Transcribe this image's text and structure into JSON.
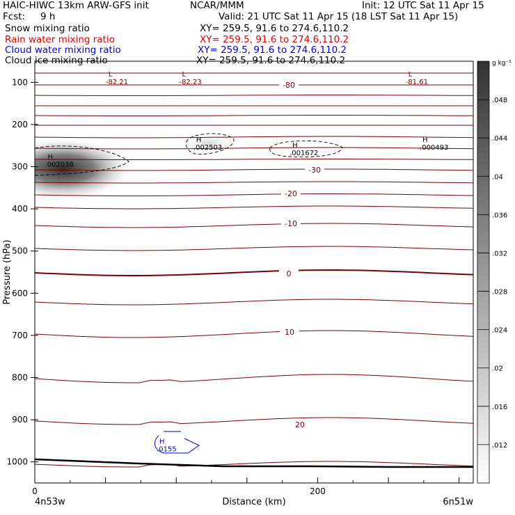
{
  "header": {
    "left_title": "HAIC-HIWC 13km ARW-GFS init",
    "center_title": "NCAR/MMM",
    "init": "Init: 12 UTC Sat 11 Apr 15",
    "fcst_label": "Fcst:",
    "fcst_value": "9 h",
    "valid": "Valid: 21 UTC Sat 11 Apr 15 (18 LST Sat 11 Apr 15)",
    "fields": [
      {
        "name": "Snow mixing ratio",
        "xy": "XY= 259.5, 91.6 to 274.6,110.2",
        "color": "#000000"
      },
      {
        "name": "Rain water mixing ratio",
        "xy": "XY= 259.5, 91.6 to 274.6,110.2",
        "color": "#e00000"
      },
      {
        "name": "Cloud water mixing ratio",
        "xy": "XY= 259.5, 91.6 to 274.6,110.2",
        "color": "#0000d0"
      },
      {
        "name": "Cloud ice mixing ratio",
        "xy": "XY= 259.5, 91.6 to 274.6,110.2",
        "color": "#000000"
      }
    ]
  },
  "chart_data": {
    "type": "heatmap",
    "xlabel": "Distance (km)",
    "ylabel": "Pressure (hPa)",
    "x_range_km": [
      0,
      310
    ],
    "y_range_hPa": [
      1050,
      50
    ],
    "x_ticks": [
      0,
      200
    ],
    "x_end_labels": [
      "4n53w",
      "6n51w"
    ],
    "y_ticks": [
      100,
      200,
      300,
      400,
      500,
      600,
      700,
      800,
      900,
      1000
    ],
    "colorbar": {
      "unit": "g kg⁻¹",
      "ticks": [
        ".012",
        ".016",
        ".02",
        ".024",
        ".028",
        ".032",
        ".036",
        ".04",
        ".044",
        ".048"
      ],
      "range": [
        0.008,
        0.052
      ]
    },
    "temperature_contour_labels": [
      "-80",
      "-30",
      "-20",
      "-10",
      "0",
      "10",
      "20"
    ],
    "temperature_extremes": [
      {
        "kind": "L",
        "value": "-82.21",
        "x_km": 58,
        "p_hPa": 90
      },
      {
        "kind": "L",
        "value": "-82.23",
        "x_km": 110,
        "p_hPa": 90
      },
      {
        "kind": "L",
        "value": "-81.61",
        "x_km": 270,
        "p_hPa": 90
      }
    ],
    "snow_extremes": [
      {
        "kind": "H",
        "value": ".002038",
        "x_km": 15,
        "p_hPa": 285
      },
      {
        "kind": "H",
        "value": ".002503",
        "x_km": 120,
        "p_hPa": 245
      },
      {
        "kind": "H",
        "value": ".001672",
        "x_km": 188,
        "p_hPa": 258
      },
      {
        "kind": "H",
        "value": ".000493",
        "x_km": 280,
        "p_hPa": 245
      }
    ],
    "cloud_water_extremes": [
      {
        "kind": "H",
        "value": ".0155",
        "x_km": 94,
        "p_hPa": 960
      }
    ]
  }
}
